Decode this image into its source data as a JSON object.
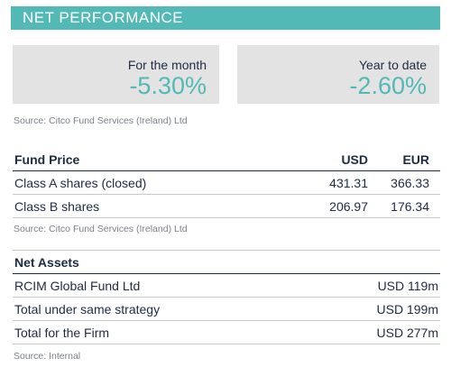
{
  "banner": {
    "title": "NET PERFORMANCE"
  },
  "performance": {
    "month": {
      "label": "For the month",
      "value": "-5.30%"
    },
    "ytd": {
      "label": "Year to date",
      "value": "-2.60%"
    },
    "source": "Source: Citco Fund Services (Ireland) Ltd"
  },
  "fund_price": {
    "headers": {
      "title": "Fund Price",
      "usd": "USD",
      "eur": "EUR"
    },
    "rows": [
      {
        "label": "Class A shares (closed)",
        "usd": "431.31",
        "eur": "366.33"
      },
      {
        "label": "Class B shares",
        "usd": "206.97",
        "eur": "176.34"
      }
    ],
    "source": "Source: Citco Fund Services (Ireland) Ltd"
  },
  "net_assets": {
    "title": "Net Assets",
    "rows": [
      {
        "label": "RCIM Global Fund Ltd",
        "value": "USD 119m"
      },
      {
        "label": "Total under same strategy",
        "value": "USD 199m"
      },
      {
        "label": "Total for the Firm",
        "value": "USD 277m"
      }
    ],
    "source": "Source: Internal"
  },
  "colors": {
    "accent": "#52b9b6",
    "text": "#1f2a44",
    "box": "#e3e3e3",
    "muted": "#7a7f8a"
  }
}
